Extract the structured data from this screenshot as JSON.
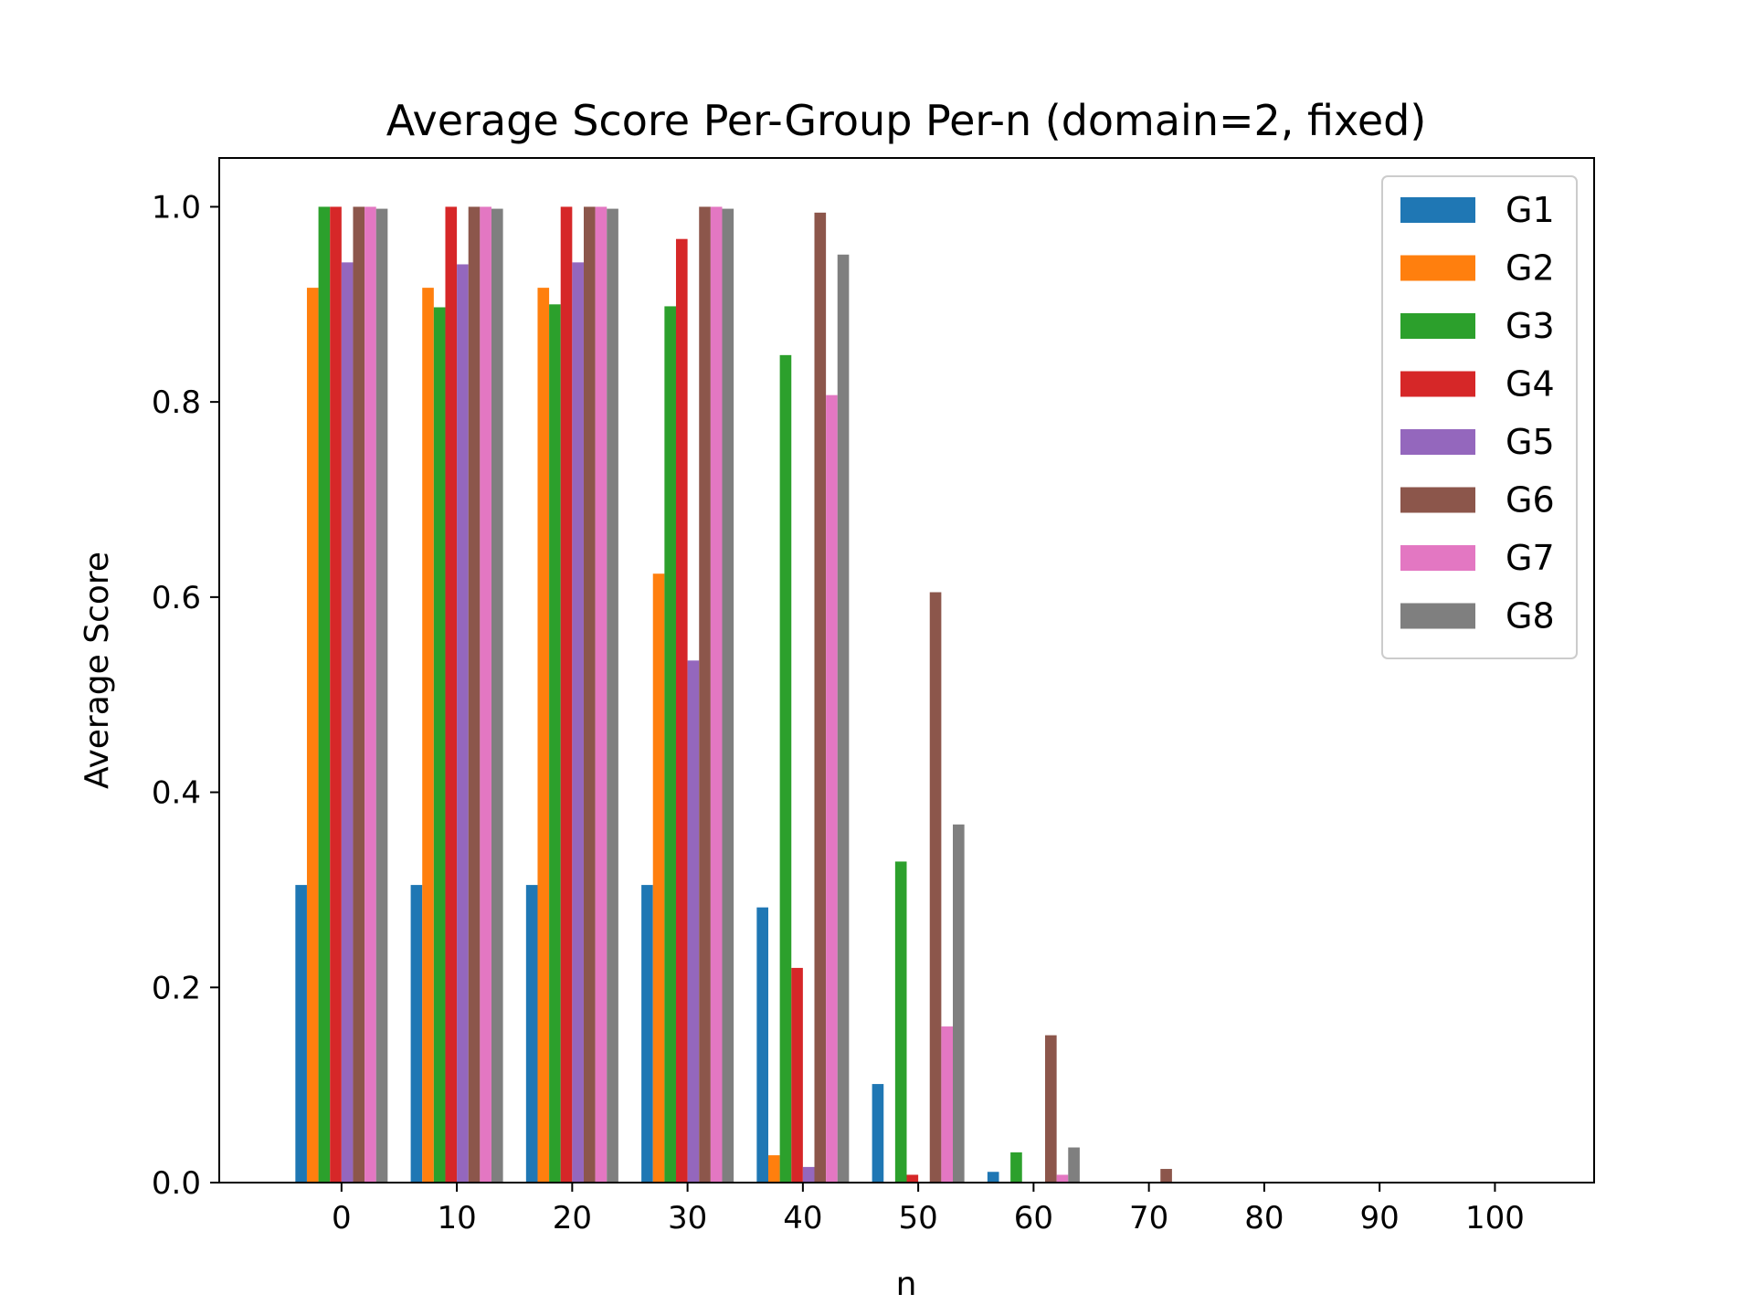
{
  "chart_data": {
    "type": "bar",
    "title": "Average Score Per-Group Per-n (domain=2, fixed)",
    "xlabel": "n",
    "ylabel": "Average Score",
    "categories": [
      0,
      10,
      20,
      30,
      40,
      50,
      60,
      70,
      80,
      90,
      100
    ],
    "x_ticks": [
      "0",
      "10",
      "20",
      "30",
      "40",
      "50",
      "60",
      "70",
      "80",
      "90",
      "100"
    ],
    "y_ticks": [
      "0.0",
      "0.2",
      "0.4",
      "0.6",
      "0.8",
      "1.0"
    ],
    "ylim": [
      0,
      1.05
    ],
    "grid": false,
    "legend_position": "top-right",
    "series": [
      {
        "name": "G1",
        "color": "#1f77b4",
        "values": [
          0.305,
          0.305,
          0.305,
          0.305,
          0.282,
          0.101,
          0.011,
          0,
          0,
          0,
          0
        ]
      },
      {
        "name": "G2",
        "color": "#ff7f0e",
        "values": [
          0.917,
          0.917,
          0.917,
          0.624,
          0.028,
          0,
          0,
          0,
          0,
          0,
          0
        ]
      },
      {
        "name": "G3",
        "color": "#2ca02c",
        "values": [
          1.0,
          0.897,
          0.9,
          0.898,
          0.848,
          0.329,
          0.031,
          0,
          0,
          0,
          0
        ]
      },
      {
        "name": "G4",
        "color": "#d62728",
        "values": [
          1.0,
          1.0,
          1.0,
          0.967,
          0.22,
          0.008,
          0,
          0,
          0,
          0,
          0
        ]
      },
      {
        "name": "G5",
        "color": "#9467bd",
        "values": [
          0.943,
          0.941,
          0.943,
          0.535,
          0.016,
          0,
          0,
          0,
          0,
          0,
          0
        ]
      },
      {
        "name": "G6",
        "color": "#8c564b",
        "values": [
          1.0,
          1.0,
          1.0,
          1.0,
          0.994,
          0.605,
          0.151,
          0.014,
          0,
          0,
          0
        ]
      },
      {
        "name": "G7",
        "color": "#e377c2",
        "values": [
          1.0,
          1.0,
          1.0,
          1.0,
          0.807,
          0.16,
          0.008,
          0,
          0,
          0,
          0
        ]
      },
      {
        "name": "G8",
        "color": "#7f7f7f",
        "values": [
          0.998,
          0.998,
          0.998,
          0.998,
          0.951,
          0.367,
          0.036,
          0,
          0,
          0,
          0
        ]
      }
    ]
  }
}
